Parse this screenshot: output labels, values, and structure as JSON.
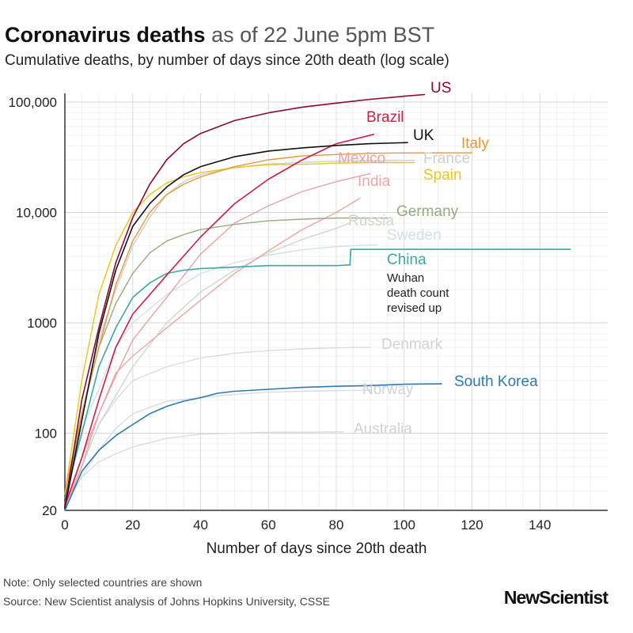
{
  "header": {
    "title_bold": "Coronavirus deaths",
    "title_rest": " as of 22 June 5pm BST",
    "subtitle": "Cumulative deaths, by number of days since 20th death (log scale)"
  },
  "footer": {
    "note": "Note: Only selected countries are shown",
    "source": "Source: New Scientist analysis of Johns Hopkins University, CSSE",
    "logo": "NewScientist"
  },
  "chart_data": {
    "type": "line",
    "xlabel": "Number of days since 20th death",
    "ylabel": "",
    "y_scale": "log",
    "xlim": [
      0,
      160
    ],
    "ylim": [
      20,
      120000
    ],
    "x_ticks": [
      0,
      20,
      40,
      60,
      80,
      100,
      120,
      140
    ],
    "x_tick_labels": [
      "0",
      "20",
      "40",
      "60",
      "80",
      "100",
      "120",
      "140"
    ],
    "y_ticks": [
      20,
      100,
      1000,
      10000,
      100000
    ],
    "y_tick_labels": [
      "20",
      "100",
      "1000",
      "10,000",
      "100,000"
    ],
    "grid": true,
    "annotation": "Wuhan\ndeath count\nrevised up",
    "series": [
      {
        "name": "US",
        "color": "#8b0a2c",
        "label_color": "#8b0a2c",
        "points": [
          [
            0,
            22
          ],
          [
            5,
            200
          ],
          [
            10,
            900
          ],
          [
            15,
            3500
          ],
          [
            20,
            9000
          ],
          [
            25,
            18000
          ],
          [
            30,
            30000
          ],
          [
            35,
            42000
          ],
          [
            40,
            52000
          ],
          [
            50,
            68000
          ],
          [
            60,
            80000
          ],
          [
            70,
            90000
          ],
          [
            80,
            98000
          ],
          [
            90,
            106000
          ],
          [
            100,
            113000
          ],
          [
            106,
            117000
          ]
        ]
      },
      {
        "name": "Brazil",
        "color": "#cc1f4a",
        "label_color": "#cc1f4a",
        "points": [
          [
            0,
            22
          ],
          [
            5,
            60
          ],
          [
            10,
            200
          ],
          [
            15,
            600
          ],
          [
            20,
            1200
          ],
          [
            30,
            2700
          ],
          [
            40,
            6000
          ],
          [
            50,
            12000
          ],
          [
            60,
            20000
          ],
          [
            70,
            30000
          ],
          [
            80,
            42000
          ],
          [
            91,
            51000
          ]
        ]
      },
      {
        "name": "UK",
        "color": "#111111",
        "label_color": "#111111",
        "points": [
          [
            0,
            21
          ],
          [
            5,
            130
          ],
          [
            10,
            800
          ],
          [
            15,
            3000
          ],
          [
            20,
            7500
          ],
          [
            25,
            12000
          ],
          [
            30,
            17000
          ],
          [
            35,
            22000
          ],
          [
            40,
            26000
          ],
          [
            50,
            32000
          ],
          [
            60,
            36000
          ],
          [
            70,
            38500
          ],
          [
            80,
            40500
          ],
          [
            90,
            42000
          ],
          [
            101,
            43000
          ]
        ]
      },
      {
        "name": "Italy",
        "color": "#e8973b",
        "label_color": "#e8973b",
        "points": [
          [
            0,
            29
          ],
          [
            5,
            150
          ],
          [
            10,
            600
          ],
          [
            15,
            2200
          ],
          [
            20,
            5500
          ],
          [
            25,
            10000
          ],
          [
            30,
            14500
          ],
          [
            35,
            18000
          ],
          [
            40,
            21000
          ],
          [
            50,
            26000
          ],
          [
            60,
            30000
          ],
          [
            70,
            32500
          ],
          [
            80,
            33500
          ],
          [
            90,
            34400
          ],
          [
            100,
            34600
          ],
          [
            110,
            34650
          ],
          [
            120,
            34700
          ]
        ]
      },
      {
        "name": "Mexico",
        "color": "#e5a3a3",
        "label_color": "#e5a3a3",
        "points": [
          [
            0,
            20
          ],
          [
            5,
            50
          ],
          [
            10,
            150
          ],
          [
            15,
            330
          ],
          [
            20,
            700
          ],
          [
            30,
            1700
          ],
          [
            40,
            4200
          ],
          [
            50,
            8000
          ],
          [
            60,
            11500
          ],
          [
            70,
            15500
          ],
          [
            80,
            19000
          ],
          [
            90,
            22500
          ]
        ]
      },
      {
        "name": "France",
        "color": "#cfcfcf",
        "label_color": "#cfcfcf",
        "points": [
          [
            0,
            20
          ],
          [
            5,
            150
          ],
          [
            10,
            700
          ],
          [
            15,
            2000
          ],
          [
            20,
            5000
          ],
          [
            25,
            9000
          ],
          [
            30,
            14500
          ],
          [
            35,
            19000
          ],
          [
            40,
            22000
          ],
          [
            50,
            25500
          ],
          [
            60,
            27500
          ],
          [
            70,
            28500
          ],
          [
            80,
            29100
          ],
          [
            90,
            29500
          ],
          [
            103,
            29650
          ]
        ]
      },
      {
        "name": "Spain",
        "color": "#f0c419",
        "label_color": "#f0c419",
        "points": [
          [
            0,
            28
          ],
          [
            5,
            300
          ],
          [
            10,
            1800
          ],
          [
            15,
            5000
          ],
          [
            20,
            10000
          ],
          [
            25,
            14500
          ],
          [
            30,
            18500
          ],
          [
            35,
            21000
          ],
          [
            40,
            23000
          ],
          [
            50,
            25500
          ],
          [
            60,
            27100
          ],
          [
            70,
            27300
          ],
          [
            80,
            28000
          ],
          [
            90,
            28300
          ],
          [
            103,
            28300
          ]
        ]
      },
      {
        "name": "India",
        "color": "#eda7a3",
        "label_color": "#eda7a3",
        "points": [
          [
            0,
            20
          ],
          [
            5,
            60
          ],
          [
            10,
            150
          ],
          [
            15,
            350
          ],
          [
            20,
            500
          ],
          [
            30,
            900
          ],
          [
            40,
            1600
          ],
          [
            50,
            2800
          ],
          [
            60,
            4500
          ],
          [
            70,
            7000
          ],
          [
            80,
            10000
          ],
          [
            87,
            13500
          ]
        ]
      },
      {
        "name": "Germany",
        "color": "#97ac7e",
        "label_color": "#97ac7e",
        "points": [
          [
            0,
            23
          ],
          [
            5,
            150
          ],
          [
            10,
            600
          ],
          [
            15,
            1500
          ],
          [
            20,
            2800
          ],
          [
            25,
            4300
          ],
          [
            30,
            5500
          ],
          [
            35,
            6300
          ],
          [
            40,
            7000
          ],
          [
            50,
            7800
          ],
          [
            60,
            8400
          ],
          [
            70,
            8700
          ],
          [
            80,
            8900
          ],
          [
            90,
            8900
          ],
          [
            96,
            8900
          ]
        ]
      },
      {
        "name": "Russia",
        "color": "#cfd8cc",
        "label_color": "#cfd8cc",
        "points": [
          [
            0,
            22
          ],
          [
            5,
            50
          ],
          [
            10,
            120
          ],
          [
            20,
            400
          ],
          [
            30,
            1000
          ],
          [
            40,
            1900
          ],
          [
            50,
            3000
          ],
          [
            60,
            4300
          ],
          [
            70,
            5700
          ],
          [
            80,
            7200
          ],
          [
            84,
            8000
          ]
        ]
      },
      {
        "name": "Sweden",
        "color": "#d6dfe7",
        "label_color": "#d6dfe7",
        "points": [
          [
            0,
            22
          ],
          [
            5,
            110
          ],
          [
            10,
            250
          ],
          [
            15,
            600
          ],
          [
            20,
            1000
          ],
          [
            30,
            1800
          ],
          [
            40,
            2800
          ],
          [
            50,
            3500
          ],
          [
            60,
            4100
          ],
          [
            70,
            4600
          ],
          [
            80,
            4900
          ],
          [
            92,
            5100
          ]
        ]
      },
      {
        "name": "China",
        "color": "#3da8a1",
        "label_color": "#3da8a1",
        "points": [
          [
            0,
            26
          ],
          [
            5,
            100
          ],
          [
            10,
            400
          ],
          [
            15,
            900
          ],
          [
            20,
            1700
          ],
          [
            25,
            2300
          ],
          [
            30,
            2800
          ],
          [
            35,
            3000
          ],
          [
            40,
            3100
          ],
          [
            50,
            3200
          ],
          [
            60,
            3300
          ],
          [
            70,
            3300
          ],
          [
            80,
            3300
          ],
          [
            84,
            3350
          ],
          [
            84.3,
            4630
          ],
          [
            100,
            4634
          ],
          [
            120,
            4634
          ],
          [
            149,
            4634
          ]
        ]
      },
      {
        "name": "Denmark",
        "color": "#d8dde3",
        "label_color": "#cdd3da",
        "points": [
          [
            0,
            22
          ],
          [
            5,
            50
          ],
          [
            10,
            120
          ],
          [
            15,
            200
          ],
          [
            20,
            300
          ],
          [
            30,
            400
          ],
          [
            40,
            480
          ],
          [
            50,
            530
          ],
          [
            60,
            560
          ],
          [
            70,
            580
          ],
          [
            80,
            595
          ],
          [
            90,
            600
          ]
        ]
      },
      {
        "name": "South Korea",
        "color": "#2b7bb0",
        "label_color": "#2b7bb0",
        "points": [
          [
            0,
            20
          ],
          [
            5,
            45
          ],
          [
            10,
            70
          ],
          [
            15,
            95
          ],
          [
            20,
            120
          ],
          [
            25,
            150
          ],
          [
            30,
            175
          ],
          [
            35,
            195
          ],
          [
            40,
            210
          ],
          [
            45,
            230
          ],
          [
            50,
            240
          ],
          [
            60,
            250
          ],
          [
            70,
            260
          ],
          [
            80,
            266
          ],
          [
            90,
            270
          ],
          [
            100,
            278
          ],
          [
            111,
            280
          ]
        ]
      },
      {
        "name": "Norway",
        "color": "#d8dde3",
        "label_color": "#cdd3da",
        "points": [
          [
            0,
            22
          ],
          [
            5,
            40
          ],
          [
            10,
            70
          ],
          [
            15,
            110
          ],
          [
            20,
            150
          ],
          [
            30,
            195
          ],
          [
            40,
            210
          ],
          [
            50,
            225
          ],
          [
            60,
            235
          ],
          [
            70,
            240
          ],
          [
            80,
            243
          ],
          [
            90,
            245
          ]
        ]
      },
      {
        "name": "Australia",
        "color": "#d8dde3",
        "label_color": "#cdd3da",
        "points": [
          [
            0,
            22
          ],
          [
            5,
            40
          ],
          [
            10,
            55
          ],
          [
            15,
            65
          ],
          [
            20,
            75
          ],
          [
            30,
            90
          ],
          [
            40,
            98
          ],
          [
            50,
            100
          ],
          [
            60,
            102
          ],
          [
            70,
            102
          ],
          [
            82,
            103
          ]
        ]
      }
    ]
  }
}
